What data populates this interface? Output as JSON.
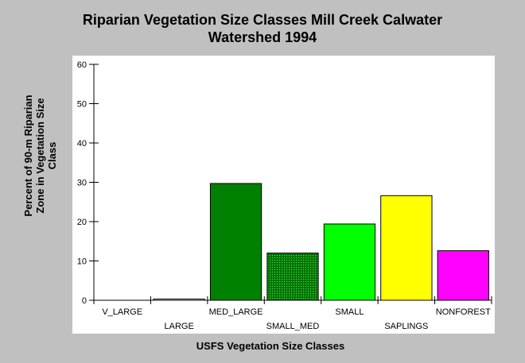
{
  "chart_data": {
    "type": "bar",
    "title_lines": [
      "Riparian Vegetation Size Classes Mill Creek Calwater",
      "Watershed 1994"
    ],
    "xlabel": "USFS Vegetation Size Classes",
    "ylabel_lines": [
      "Percent of 90-m Riparian",
      "Zone in Vegetation Size",
      "Class"
    ],
    "categories": [
      "V_LARGE",
      "LARGE",
      "MED_LARGE",
      "SMALL_MED",
      "SMALL",
      "SAPLINGS",
      "NONFOREST"
    ],
    "values": [
      0,
      0.3,
      29.7,
      12.0,
      19.4,
      26.6,
      12.6
    ],
    "colors": [
      "#ffffff",
      "#ffffff",
      "#008000",
      "#1a8a1a",
      "#00ff00",
      "#ffff00",
      "#ff00ff"
    ],
    "hatched": [
      false,
      false,
      false,
      true,
      false,
      false,
      false
    ],
    "ylim": [
      0,
      60
    ],
    "yticks": [
      0,
      10,
      20,
      30,
      40,
      50,
      60
    ],
    "grid": false,
    "legend": "none"
  }
}
